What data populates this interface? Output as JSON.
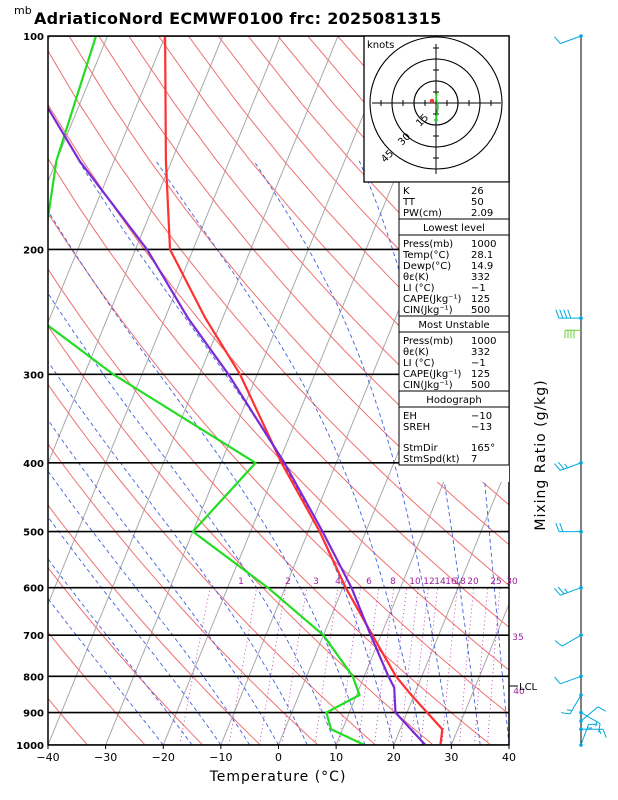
{
  "header": {
    "unit_mb": "mb",
    "title": "AdriaticoNord ECMWF0100 frc: 2025081315"
  },
  "chart_data": {
    "type": "line",
    "title": "AdriaticoNord ECMWF0100 frc: 2025081315",
    "xlabel": "Temperature (°C)",
    "ylabel": "mb",
    "right_label": "Mixing Ratio (g/kg)",
    "xlim": [
      -40,
      40
    ],
    "ylim": [
      1000,
      100
    ],
    "x_ticks": [
      "−40",
      "−30",
      "−20",
      "−10",
      "0",
      "10",
      "20",
      "30",
      "40"
    ],
    "pressure_ticks": [
      100,
      200,
      300,
      400,
      500,
      600,
      700,
      800,
      900,
      1000
    ],
    "mixing_ratio_labels": [
      "1",
      "2",
      "3",
      "4",
      "6",
      "8",
      "10",
      "12",
      "14",
      "16",
      "18",
      "20",
      "25",
      "30",
      "35",
      "40"
    ],
    "lcl_label": "LCL",
    "series": [
      {
        "name": "temperature",
        "color": "#ff3030",
        "points": [
          {
            "p": 1000,
            "t": 28.1
          },
          {
            "p": 950,
            "t": 27.3
          },
          {
            "p": 900,
            "t": 23.5
          },
          {
            "p": 850,
            "t": 19.5
          },
          {
            "p": 800,
            "t": 15.5
          },
          {
            "p": 700,
            "t": 8.5
          },
          {
            "p": 600,
            "t": 0.5
          },
          {
            "p": 500,
            "t": -8.0
          },
          {
            "p": 400,
            "t": -19.5
          },
          {
            "p": 300,
            "t": -33.0
          },
          {
            "p": 250,
            "t": -43.0
          },
          {
            "p": 200,
            "t": -54.0
          },
          {
            "p": 150,
            "t": -61.0
          },
          {
            "p": 100,
            "t": -70.0
          }
        ]
      },
      {
        "name": "dewpoint",
        "color": "#22dd22",
        "points": [
          {
            "p": 1000,
            "t": 14.9
          },
          {
            "p": 950,
            "t": 8.0
          },
          {
            "p": 900,
            "t": 6.0
          },
          {
            "p": 850,
            "t": 10.5
          },
          {
            "p": 800,
            "t": 8.0
          },
          {
            "p": 700,
            "t": 0.0
          },
          {
            "p": 600,
            "t": -13.0
          },
          {
            "p": 500,
            "t": -30.0
          },
          {
            "p": 400,
            "t": -24.0
          },
          {
            "p": 300,
            "t": -55.0
          },
          {
            "p": 250,
            "t": -72.0
          },
          {
            "p": 200,
            "t": -76.0
          },
          {
            "p": 150,
            "t": -80.0
          },
          {
            "p": 100,
            "t": -82.0
          }
        ]
      },
      {
        "name": "parcel",
        "color": "#7a2ad6",
        "points": [
          {
            "p": 1000,
            "t": 25.5
          },
          {
            "p": 900,
            "t": 18.0
          },
          {
            "p": 830,
            "t": 16.0
          },
          {
            "p": 800,
            "t": 14.2
          },
          {
            "p": 700,
            "t": 8.2
          },
          {
            "p": 600,
            "t": 1.5
          },
          {
            "p": 500,
            "t": -7.5
          },
          {
            "p": 400,
            "t": -19.0
          },
          {
            "p": 300,
            "t": -35.0
          },
          {
            "p": 250,
            "t": -46.0
          },
          {
            "p": 200,
            "t": -58.0
          },
          {
            "p": 150,
            "t": -76.0
          },
          {
            "p": 120,
            "t": -88.0
          }
        ]
      }
    ],
    "wind_profile": [
      {
        "p": 1000,
        "dir": 20,
        "spd": 5
      },
      {
        "p": 950,
        "dir": 90,
        "spd": 5
      },
      {
        "p": 925,
        "dir": 50,
        "spd": 10
      },
      {
        "p": 900,
        "dir": 120,
        "spd": 5
      },
      {
        "p": 850,
        "dir": 210,
        "spd": 5
      },
      {
        "p": 800,
        "dir": 250,
        "spd": 10
      },
      {
        "p": 700,
        "dir": 240,
        "spd": 10
      },
      {
        "p": 600,
        "dir": 250,
        "spd": 15
      },
      {
        "p": 500,
        "dir": 270,
        "spd": 20
      },
      {
        "p": 400,
        "dir": 250,
        "spd": 15
      },
      {
        "p": 250,
        "dir": 270,
        "spd": 40
      },
      {
        "p": 100,
        "dir": 250,
        "spd": 10
      }
    ]
  },
  "hodograph": {
    "units": "knots",
    "ring_labels": [
      "15",
      "30",
      "45"
    ]
  },
  "indices": [
    {
      "label": "K",
      "value": "26"
    },
    {
      "label": "TT",
      "value": "50"
    },
    {
      "label": "PW(cm)",
      "value": "2.09"
    }
  ],
  "lowest_level": {
    "title": "Lowest level",
    "rows": [
      {
        "label": "Press(mb)",
        "value": "1000"
      },
      {
        "label": "Temp(°C)",
        "value": "28.1"
      },
      {
        "label": "Dewp(°C)",
        "value": "14.9"
      },
      {
        "label": "θε(K)",
        "value": "332"
      },
      {
        "label": "LI (°C)",
        "value": "−1"
      },
      {
        "label": "CAPE(Jkg⁻¹)",
        "value": "125"
      },
      {
        "label": "CIN(Jkg⁻¹)",
        "value": "500"
      }
    ]
  },
  "most_unstable": {
    "title": "Most Unstable",
    "rows": [
      {
        "label": "Press(mb)",
        "value": "1000"
      },
      {
        "label": "θε(K)",
        "value": "332"
      },
      {
        "label": "LI (°C)",
        "value": "−1"
      },
      {
        "label": "CAPE(Jkg⁻¹)",
        "value": "125"
      },
      {
        "label": "CIN(Jkg⁻¹)",
        "value": "500"
      }
    ]
  },
  "hodograph_params": {
    "title": "Hodograph",
    "rows": [
      {
        "label": "EH",
        "value": "−10"
      },
      {
        "label": "SREH",
        "value": "−13"
      },
      {
        "label": "StmDir",
        "value": "165°"
      },
      {
        "label": "StmSpd(kt)",
        "value": "7"
      }
    ]
  }
}
